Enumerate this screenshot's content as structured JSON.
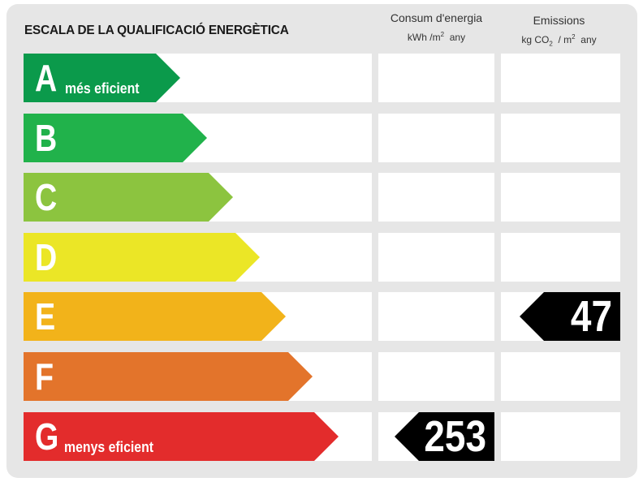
{
  "title": "ESCALA DE LA QUALIFICACIÓ ENERGÈTICA",
  "columns": {
    "consumption": {
      "label": "Consum d'energia",
      "unit_prefix": "kWh /m",
      "unit_exp": "2",
      "unit_suffix": "any"
    },
    "emissions": {
      "label": "Emissions",
      "unit_prefix": "kg CO",
      "unit_sub": "2",
      "unit_mid": "/ m",
      "unit_exp": "2",
      "unit_suffix": "any"
    }
  },
  "ratings": [
    {
      "letter": "A",
      "description": "més eficient",
      "color": "#0b9a4b"
    },
    {
      "letter": "B",
      "description": "",
      "color": "#21b24b"
    },
    {
      "letter": "C",
      "description": "",
      "color": "#8cc43f"
    },
    {
      "letter": "D",
      "description": "",
      "color": "#ebe626"
    },
    {
      "letter": "E",
      "description": "",
      "color": "#f2b31a"
    },
    {
      "letter": "F",
      "description": "",
      "color": "#e3742b"
    },
    {
      "letter": "G",
      "description": "menys eficient",
      "color": "#e32c2c"
    }
  ],
  "consumption_rating": {
    "letter": "G",
    "value": "253"
  },
  "emissions_rating": {
    "letter": "E",
    "value": "47"
  },
  "badge_color": "#000000"
}
